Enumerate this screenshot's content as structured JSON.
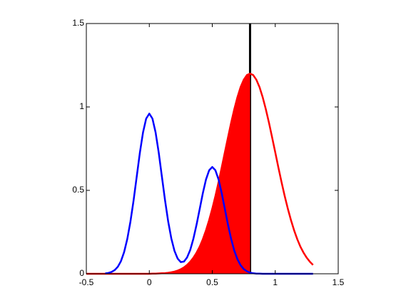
{
  "chart_data": {
    "type": "line",
    "x": [
      -0.5,
      -0.475,
      -0.45,
      -0.425,
      -0.4,
      -0.375,
      -0.35,
      -0.325,
      -0.3,
      -0.275,
      -0.25,
      -0.225,
      -0.2,
      -0.175,
      -0.15,
      -0.125,
      -0.1,
      -0.075,
      -0.05,
      -0.025,
      0,
      0.025,
      0.05,
      0.075,
      0.1,
      0.125,
      0.15,
      0.175,
      0.2,
      0.225,
      0.25,
      0.275,
      0.3,
      0.325,
      0.35,
      0.375,
      0.4,
      0.425,
      0.45,
      0.475,
      0.5,
      0.525,
      0.55,
      0.575,
      0.6,
      0.625,
      0.65,
      0.675,
      0.7,
      0.725,
      0.75,
      0.775,
      0.8,
      0.825,
      0.85,
      0.875,
      0.9,
      0.925,
      0.95,
      0.975,
      1,
      1.025,
      1.05,
      1.075,
      1.1,
      1.125,
      1.15,
      1.175,
      1.2,
      1.225,
      1.25,
      1.275,
      1.3
    ],
    "series": [
      {
        "color": "#ff0000",
        "fill": true,
        "values": [
          0,
          0,
          0,
          0,
          0,
          0,
          0,
          0,
          0,
          0,
          0,
          0,
          0,
          0,
          0,
          0,
          0,
          0,
          0,
          0,
          0,
          0.001,
          0.001,
          0.002,
          0.003,
          0.004,
          0.006,
          0.009,
          0.013,
          0.019,
          0.027,
          0.038,
          0.053,
          0.072,
          0.096,
          0.126,
          0.162,
          0.207,
          0.26,
          0.321,
          0.39,
          0.466,
          0.549,
          0.637,
          0.728,
          0.818,
          0.906,
          0.987,
          1.059,
          1.119,
          1.163,
          1.191,
          1.2,
          1.191,
          1.163,
          1.119,
          1.059,
          0.987,
          0.906,
          0.818,
          0.728,
          0.637,
          0.549,
          0.466,
          0.39,
          0.321,
          0.26,
          0.207,
          0.162,
          0.126,
          0.096,
          0.072,
          0.053
        ]
      },
      {
        "color": "#0000ff",
        "fill": false,
        "values": [
          null,
          null,
          null,
          null,
          null,
          null,
          0.002,
          0.005,
          0.011,
          0.022,
          0.042,
          0.076,
          0.13,
          0.208,
          0.312,
          0.439,
          0.582,
          0.725,
          0.847,
          0.93,
          0.96,
          0.93,
          0.847,
          0.725,
          0.582,
          0.44,
          0.313,
          0.211,
          0.137,
          0.091,
          0.07,
          0.073,
          0.098,
          0.143,
          0.21,
          0.294,
          0.388,
          0.483,
          0.565,
          0.62,
          0.64,
          0.62,
          0.565,
          0.483,
          0.388,
          0.293,
          0.208,
          0.138,
          0.087,
          0.051,
          0.028,
          0.015,
          0.007,
          0.003,
          0.001,
          0.001,
          0,
          0,
          0,
          0,
          0,
          0,
          0,
          0,
          0,
          0,
          0,
          0,
          0,
          0,
          0,
          0,
          0
        ]
      }
    ],
    "vline": {
      "x": 0.8,
      "color": "#000000"
    },
    "xlim": [
      -0.5,
      1.5
    ],
    "xticks": [
      -0.5,
      0,
      0.5,
      1,
      1.5
    ],
    "ylim": [
      0,
      1.5
    ],
    "yticks": [
      0,
      0.5,
      1,
      1.5
    ]
  }
}
